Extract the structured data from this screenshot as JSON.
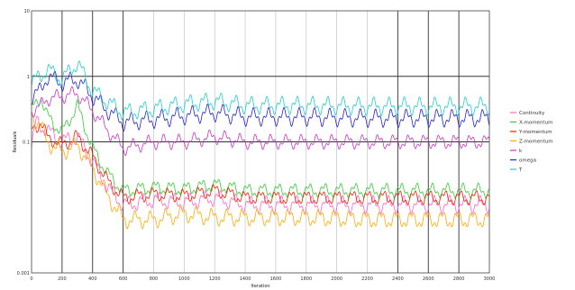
{
  "chart_data": {
    "type": "line",
    "title": "",
    "xlabel": "Iteration",
    "ylabel": "Residuals",
    "xlim": [
      0,
      3000
    ],
    "ylim": [
      0.001,
      10
    ],
    "yscale": "log",
    "x_ticks": [
      "0",
      "200",
      "400",
      "600",
      "800",
      "1000",
      "1200",
      "1400",
      "1600",
      "1800",
      "2000",
      "2200",
      "2400",
      "2600",
      "2800",
      "3000"
    ],
    "y_ticks": [
      {
        "value": 10,
        "label": "10"
      },
      {
        "value": 1,
        "label": "1"
      },
      {
        "value": 0.1,
        "label": "0.1"
      },
      {
        "value": 0.001,
        "label": "0.001"
      }
    ],
    "grid": true,
    "legend_position": "right",
    "series": [
      {
        "name": "Continuity",
        "color": "#ff66cc",
        "oscillation": 0.12,
        "points": [
          [
            0,
            0.08
          ],
          [
            30,
            0.2
          ],
          [
            100,
            0.15
          ],
          [
            200,
            0.1
          ],
          [
            300,
            0.12
          ],
          [
            400,
            0.05
          ],
          [
            500,
            0.02
          ],
          [
            600,
            0.011
          ],
          [
            800,
            0.013
          ],
          [
            1000,
            0.012
          ],
          [
            1200,
            0.014
          ],
          [
            1400,
            0.011
          ],
          [
            1800,
            0.011
          ],
          [
            2200,
            0.011
          ],
          [
            2600,
            0.011
          ],
          [
            3000,
            0.011
          ]
        ]
      },
      {
        "name": "X-momentum",
        "color": "#33cc33",
        "oscillation": 0.1,
        "points": [
          [
            0,
            0.3
          ],
          [
            60,
            0.5
          ],
          [
            100,
            0.25
          ],
          [
            200,
            0.14
          ],
          [
            300,
            0.35
          ],
          [
            400,
            0.08
          ],
          [
            500,
            0.032
          ],
          [
            600,
            0.018
          ],
          [
            800,
            0.02
          ],
          [
            1000,
            0.019
          ],
          [
            1200,
            0.022
          ],
          [
            1400,
            0.018
          ],
          [
            1800,
            0.018
          ],
          [
            2200,
            0.018
          ],
          [
            2600,
            0.018
          ],
          [
            3000,
            0.018
          ]
        ]
      },
      {
        "name": "Y-momentum",
        "color": "#ee2200",
        "oscillation": 0.1,
        "points": [
          [
            0,
            0.15
          ],
          [
            60,
            0.2
          ],
          [
            100,
            0.12
          ],
          [
            200,
            0.09
          ],
          [
            300,
            0.12
          ],
          [
            400,
            0.06
          ],
          [
            500,
            0.025
          ],
          [
            600,
            0.014
          ],
          [
            800,
            0.016
          ],
          [
            1000,
            0.015
          ],
          [
            1200,
            0.018
          ],
          [
            1400,
            0.014
          ],
          [
            1800,
            0.014
          ],
          [
            2200,
            0.014
          ],
          [
            2600,
            0.014
          ],
          [
            3000,
            0.014
          ]
        ]
      },
      {
        "name": "Z-momentum",
        "color": "#ffaa00",
        "oscillation": 0.12,
        "points": [
          [
            0,
            0.25
          ],
          [
            60,
            0.18
          ],
          [
            100,
            0.1
          ],
          [
            200,
            0.07
          ],
          [
            300,
            0.09
          ],
          [
            400,
            0.04
          ],
          [
            500,
            0.015
          ],
          [
            600,
            0.0065
          ],
          [
            800,
            0.0065
          ],
          [
            1000,
            0.008
          ],
          [
            1200,
            0.007
          ],
          [
            1400,
            0.007
          ],
          [
            1800,
            0.007
          ],
          [
            2200,
            0.0065
          ],
          [
            2600,
            0.0065
          ],
          [
            3000,
            0.0065
          ]
        ]
      },
      {
        "name": "k",
        "color": "#cc33cc",
        "oscillation": 0.1,
        "points": [
          [
            0,
            0.3
          ],
          [
            60,
            0.35
          ],
          [
            100,
            0.45
          ],
          [
            200,
            0.5
          ],
          [
            300,
            0.55
          ],
          [
            400,
            0.3
          ],
          [
            500,
            0.15
          ],
          [
            600,
            0.08
          ],
          [
            800,
            0.1
          ],
          [
            1000,
            0.1
          ],
          [
            1200,
            0.12
          ],
          [
            1400,
            0.1
          ],
          [
            1800,
            0.1
          ],
          [
            2200,
            0.1
          ],
          [
            2600,
            0.1
          ],
          [
            3000,
            0.1
          ]
        ]
      },
      {
        "name": "omega",
        "color": "#2222cc",
        "oscillation": 0.12,
        "points": [
          [
            0,
            0.5
          ],
          [
            60,
            0.6
          ],
          [
            100,
            1.0
          ],
          [
            200,
            0.8
          ],
          [
            300,
            0.9
          ],
          [
            400,
            0.5
          ],
          [
            500,
            0.3
          ],
          [
            600,
            0.2
          ],
          [
            800,
            0.22
          ],
          [
            1000,
            0.25
          ],
          [
            1200,
            0.28
          ],
          [
            1400,
            0.24
          ],
          [
            1800,
            0.24
          ],
          [
            2200,
            0.23
          ],
          [
            2600,
            0.23
          ],
          [
            3000,
            0.23
          ]
        ]
      },
      {
        "name": "T",
        "color": "#22cccc",
        "oscillation": 0.12,
        "points": [
          [
            0,
            0.8
          ],
          [
            60,
            1.0
          ],
          [
            100,
            1.3
          ],
          [
            200,
            0.9
          ],
          [
            300,
            1.6
          ],
          [
            400,
            0.6
          ],
          [
            500,
            0.4
          ],
          [
            600,
            0.28
          ],
          [
            800,
            0.32
          ],
          [
            1000,
            0.38
          ],
          [
            1200,
            0.42
          ],
          [
            1400,
            0.36
          ],
          [
            1800,
            0.36
          ],
          [
            2200,
            0.35
          ],
          [
            2600,
            0.35
          ],
          [
            3000,
            0.35
          ]
        ]
      }
    ]
  }
}
